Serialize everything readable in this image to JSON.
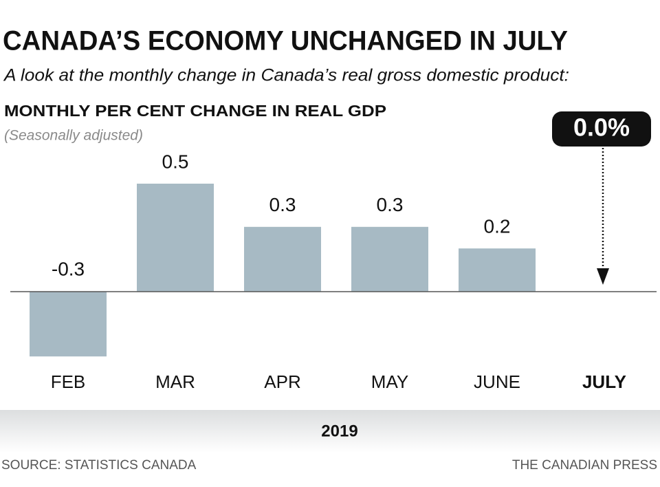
{
  "chart_data": {
    "type": "bar",
    "title": "CANADA’S ECONOMY UNCHANGED IN JULY",
    "subtitle": "A look at the monthly change in Canada’s real gross domestic product:",
    "y_label": "MONTHLY PER CENT CHANGE IN REAL GDP",
    "note": "(Seasonally adjusted)",
    "x_label": "2019",
    "source": "SOURCE: STATISTICS CANADA",
    "credit": "THE CANADIAN PRESS",
    "categories": [
      "FEB",
      "MAR",
      "APR",
      "MAY",
      "JUNE",
      "JULY"
    ],
    "values": [
      -0.3,
      0.5,
      0.3,
      0.3,
      0.2,
      0.0
    ],
    "value_labels": [
      "-0.3",
      "0.5",
      "0.3",
      "0.3",
      "0.2",
      "0.0%"
    ],
    "color": "#a7bac4"
  }
}
